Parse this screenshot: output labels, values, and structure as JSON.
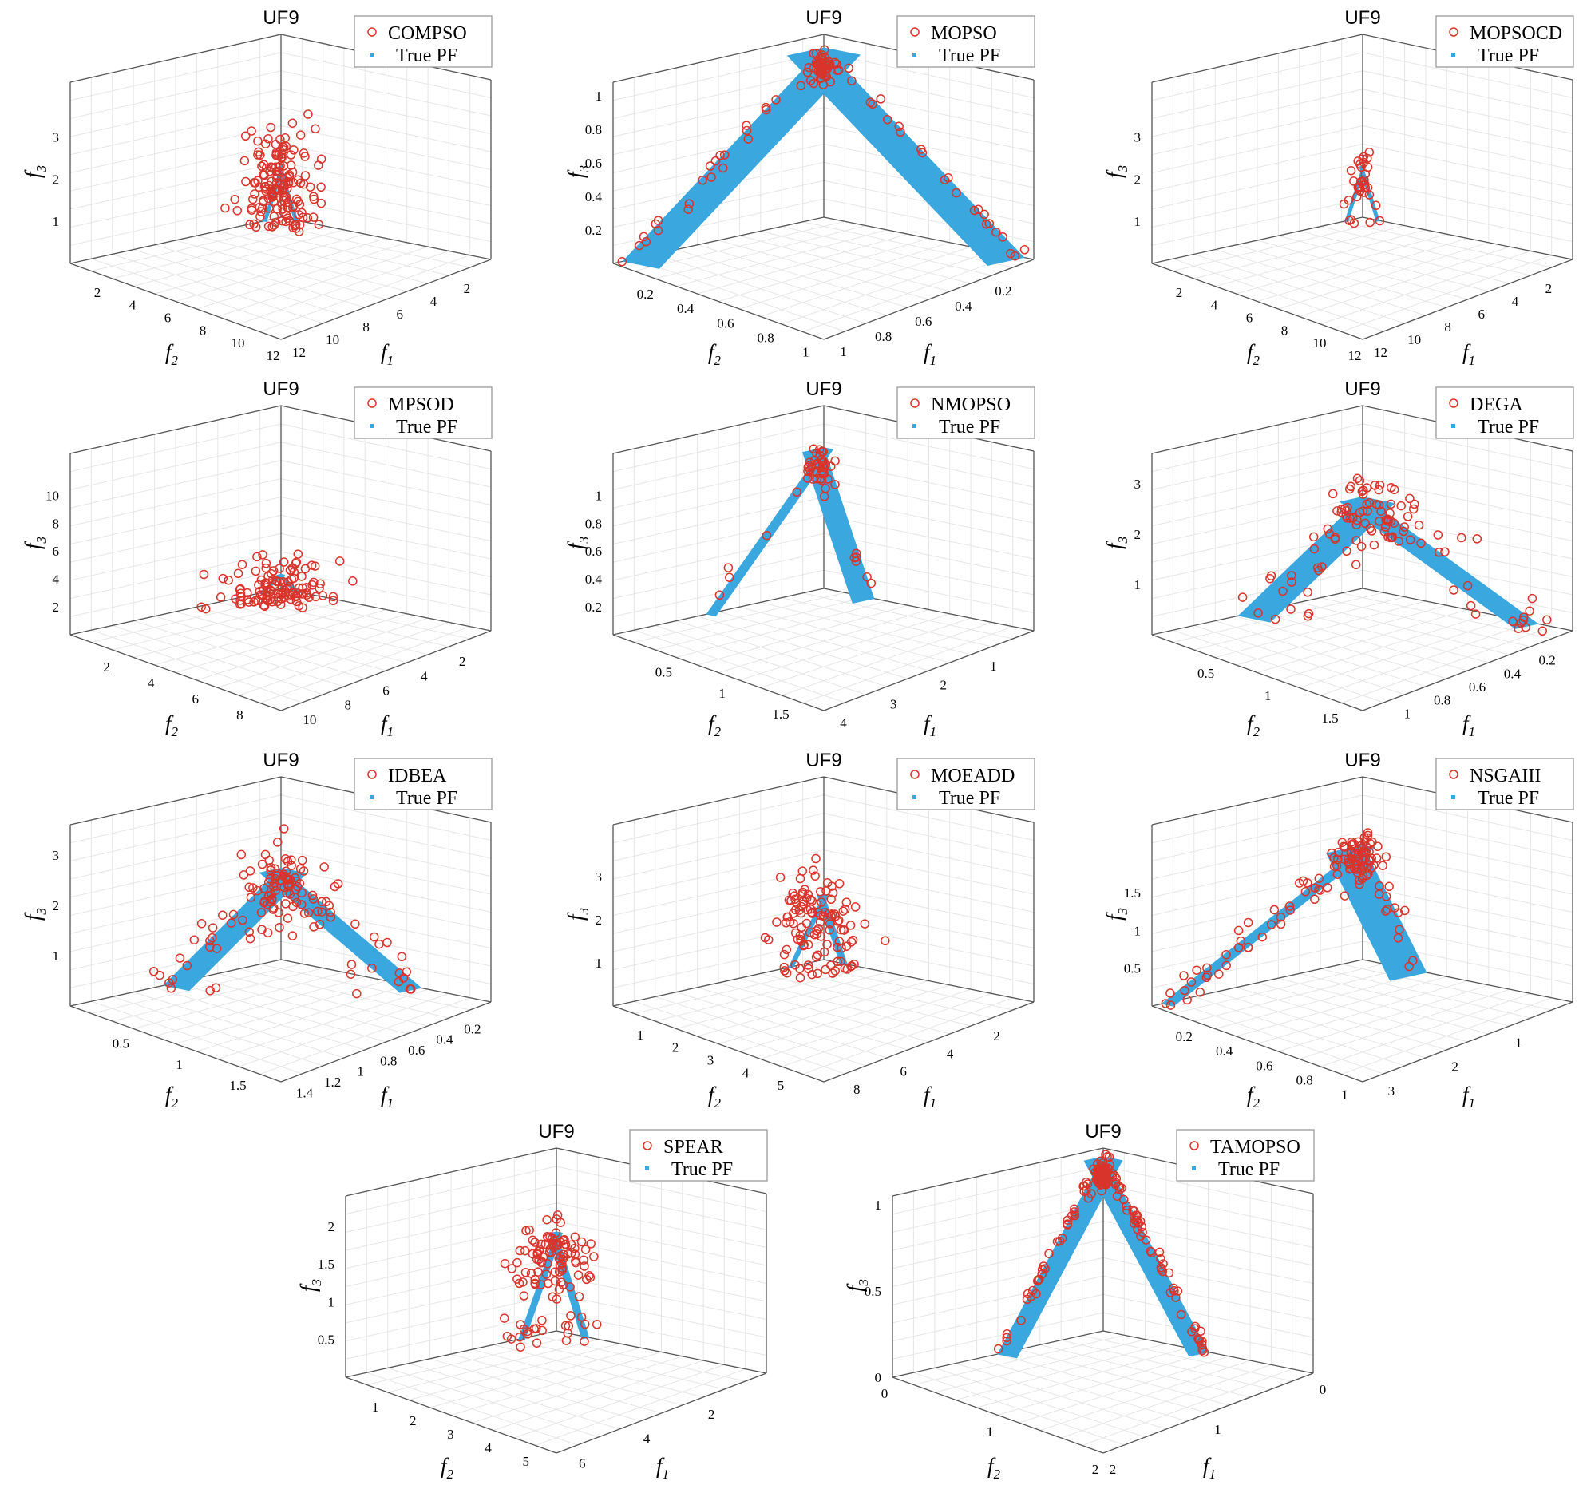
{
  "colors": {
    "obtained": "#d9342b",
    "true_pf": "#3aa7de",
    "axes": "#555555",
    "grid": "#e6e6e6"
  },
  "chart_data": [
    {
      "type": "scatter",
      "title": "UF9",
      "algorithm": "COMPSO",
      "legend": [
        "COMPSO",
        "True PF"
      ],
      "xlabel": "f1",
      "ylabel": "f2",
      "zlabel": "f3",
      "f1_ticks": [
        "2",
        "4",
        "6",
        "8",
        "10",
        "12"
      ],
      "f2_ticks": [
        "2",
        "4",
        "6",
        "8",
        "10",
        "12"
      ],
      "f3_ticks": [
        "1",
        "2",
        "3"
      ],
      "f1_range": [
        0,
        12.5
      ],
      "f2_range": [
        0,
        12
      ],
      "f3_range": [
        0,
        4.3
      ],
      "pf_scale": [
        1,
        1,
        1.2
      ],
      "spread": [
        2.2,
        2.2,
        1.2
      ],
      "n_points": 160
    },
    {
      "type": "scatter",
      "title": "UF9",
      "algorithm": "MOPSO",
      "legend": [
        "MOPSO",
        "True PF"
      ],
      "xlabel": "f1",
      "ylabel": "f2",
      "zlabel": "f3",
      "f1_ticks": [
        "0.2",
        "0.4",
        "0.6",
        "0.8",
        "1"
      ],
      "f2_ticks": [
        "0.2",
        "0.4",
        "0.6",
        "0.8",
        "1"
      ],
      "f3_ticks": [
        "0.2",
        "0.4",
        "0.6",
        "0.8",
        "1"
      ],
      "f1_range": [
        0,
        1.05
      ],
      "f2_range": [
        0,
        1.05
      ],
      "f3_range": [
        0,
        1.08
      ],
      "pf_scale": [
        1,
        1,
        1
      ],
      "spread": [
        0.06,
        0.06,
        0.06
      ],
      "n_points": 100
    },
    {
      "type": "scatter",
      "title": "UF9",
      "algorithm": "MOPSOCD",
      "legend": [
        "MOPSOCD",
        "True PF"
      ],
      "xlabel": "f1",
      "ylabel": "f2",
      "zlabel": "f3",
      "f1_ticks": [
        "2",
        "4",
        "6",
        "8",
        "10",
        "12"
      ],
      "f2_ticks": [
        "2",
        "4",
        "6",
        "8",
        "10",
        "12"
      ],
      "f3_ticks": [
        "1",
        "2",
        "3"
      ],
      "f1_range": [
        0,
        12.5
      ],
      "f2_range": [
        0,
        12
      ],
      "f3_range": [
        0,
        4.3
      ],
      "pf_scale": [
        1,
        1,
        1.2
      ],
      "spread": [
        0.6,
        0.6,
        0.7
      ],
      "n_points": 35
    },
    {
      "type": "scatter",
      "title": "UF9",
      "algorithm": "MPSOD",
      "legend": [
        "MPSOD",
        "True PF"
      ],
      "xlabel": "f1",
      "ylabel": "f2",
      "zlabel": "f3",
      "f1_ticks": [
        "2",
        "4",
        "6",
        "8",
        "10"
      ],
      "f2_ticks": [
        "2",
        "4",
        "6",
        "8"
      ],
      "f3_ticks": [
        "2",
        "4",
        "6",
        "8",
        "10"
      ],
      "f1_range": [
        0,
        11
      ],
      "f2_range": [
        0,
        9.5
      ],
      "f3_range": [
        0,
        13
      ],
      "pf_scale": [
        1,
        1,
        1
      ],
      "spread": [
        2.5,
        2.5,
        2.5
      ],
      "n_points": 120
    },
    {
      "type": "scatter",
      "title": "UF9",
      "algorithm": "NMOPSO",
      "legend": [
        "NMOPSO",
        "True PF"
      ],
      "xlabel": "f1",
      "ylabel": "f2",
      "zlabel": "f3",
      "f1_ticks": [
        "1",
        "2",
        "3",
        "4"
      ],
      "f2_ticks": [
        "0.5",
        "1",
        "1.5"
      ],
      "f3_ticks": [
        "0.2",
        "0.4",
        "0.6",
        "0.8",
        "1"
      ],
      "f1_range": [
        0,
        4.2
      ],
      "f2_range": [
        0,
        1.8
      ],
      "f3_range": [
        0,
        1.3
      ],
      "pf_scale": [
        1,
        1,
        1
      ],
      "spread": [
        0.15,
        0.15,
        0.12
      ],
      "n_points": 50
    },
    {
      "type": "scatter",
      "title": "UF9",
      "algorithm": "DEGA",
      "legend": [
        "DEGA",
        "True PF"
      ],
      "xlabel": "f1",
      "ylabel": "f2",
      "zlabel": "f3",
      "f1_ticks": [
        "0.2",
        "0.4",
        "0.6",
        "0.8",
        "1"
      ],
      "f2_ticks": [
        "0.5",
        "1",
        "1.5"
      ],
      "f3_ticks": [
        "1",
        "2",
        "3"
      ],
      "f1_range": [
        0,
        1.2
      ],
      "f2_range": [
        0,
        1.7
      ],
      "f3_range": [
        0,
        3.6
      ],
      "pf_scale": [
        1,
        1,
        1.8
      ],
      "spread": [
        0.3,
        0.3,
        0.8
      ],
      "n_points": 110
    },
    {
      "type": "scatter",
      "title": "UF9",
      "algorithm": "IDBEA",
      "legend": [
        "IDBEA",
        "True PF"
      ],
      "xlabel": "f1",
      "ylabel": "f2",
      "zlabel": "f3",
      "f1_ticks": [
        "0.2",
        "0.4",
        "0.6",
        "0.8",
        "1",
        "1.2",
        "1.4"
      ],
      "f2_ticks": [
        "0.5",
        "1",
        "1.5"
      ],
      "f3_ticks": [
        "1",
        "2",
        "3"
      ],
      "f1_range": [
        0,
        1.5
      ],
      "f2_range": [
        0,
        1.8
      ],
      "f3_range": [
        0,
        3.6
      ],
      "pf_scale": [
        1,
        1,
        1.8
      ],
      "spread": [
        0.3,
        0.3,
        0.8
      ],
      "n_points": 130
    },
    {
      "type": "scatter",
      "title": "UF9",
      "algorithm": "MOEADD",
      "legend": [
        "MOEADD",
        "True PF"
      ],
      "xlabel": "f1",
      "ylabel": "f2",
      "zlabel": "f3",
      "f1_ticks": [
        "2",
        "4",
        "6",
        "8"
      ],
      "f2_ticks": [
        "1",
        "2",
        "3",
        "4",
        "5"
      ],
      "f3_ticks": [
        "1",
        "2",
        "3"
      ],
      "f1_range": [
        0,
        9
      ],
      "f2_range": [
        0,
        6
      ],
      "f3_range": [
        0,
        4.2
      ],
      "pf_scale": [
        1,
        1,
        1.5
      ],
      "spread": [
        1.8,
        1.5,
        1.0
      ],
      "n_points": 120
    },
    {
      "type": "scatter",
      "title": "UF9",
      "algorithm": "NSGAIII",
      "legend": [
        "NSGAIII",
        "True PF"
      ],
      "xlabel": "f1",
      "ylabel": "f2",
      "zlabel": "f3",
      "f1_ticks": [
        "1",
        "2",
        "3"
      ],
      "f2_ticks": [
        "0.2",
        "0.4",
        "0.6",
        "0.8",
        "1"
      ],
      "f3_ticks": [
        "0.5",
        "1",
        "1.5"
      ],
      "f1_range": [
        0,
        3.3
      ],
      "f2_range": [
        0,
        1.05
      ],
      "f3_range": [
        0,
        2.4
      ],
      "pf_scale": [
        1,
        1,
        1.5
      ],
      "spread": [
        0.25,
        0.1,
        0.3
      ],
      "n_points": 130
    },
    {
      "type": "scatter",
      "title": "UF9",
      "algorithm": "SPEAR",
      "legend": [
        "SPEAR",
        "True PF"
      ],
      "xlabel": "f1",
      "ylabel": "f2",
      "zlabel": "f3",
      "f1_ticks": [
        "2",
        "4",
        "6"
      ],
      "f2_ticks": [
        "1",
        "2",
        "3",
        "4",
        "5"
      ],
      "f3_ticks": [
        "0.5",
        "1",
        "1.5",
        "2"
      ],
      "f1_range": [
        0,
        6.5
      ],
      "f2_range": [
        0,
        5.6
      ],
      "f3_range": [
        0,
        2.4
      ],
      "pf_scale": [
        1,
        1,
        1.3
      ],
      "spread": [
        1.3,
        1.1,
        0.4
      ],
      "n_points": 120
    },
    {
      "type": "scatter",
      "title": "UF9",
      "algorithm": "TAMOPSO",
      "legend": [
        "TAMOPSO",
        "True PF"
      ],
      "xlabel": "f1",
      "ylabel": "f2",
      "zlabel": "f3",
      "f1_ticks": [
        "0",
        "1",
        "2"
      ],
      "f2_ticks": [
        "0",
        "1",
        "2"
      ],
      "f3_ticks": [
        "0",
        "0.5",
        "1"
      ],
      "f1_range": [
        0,
        2
      ],
      "f2_range": [
        0,
        2
      ],
      "f3_range": [
        0,
        1.05
      ],
      "pf_scale": [
        1,
        1,
        1
      ],
      "spread": [
        0.05,
        0.05,
        0.05
      ],
      "n_points": 220
    }
  ]
}
